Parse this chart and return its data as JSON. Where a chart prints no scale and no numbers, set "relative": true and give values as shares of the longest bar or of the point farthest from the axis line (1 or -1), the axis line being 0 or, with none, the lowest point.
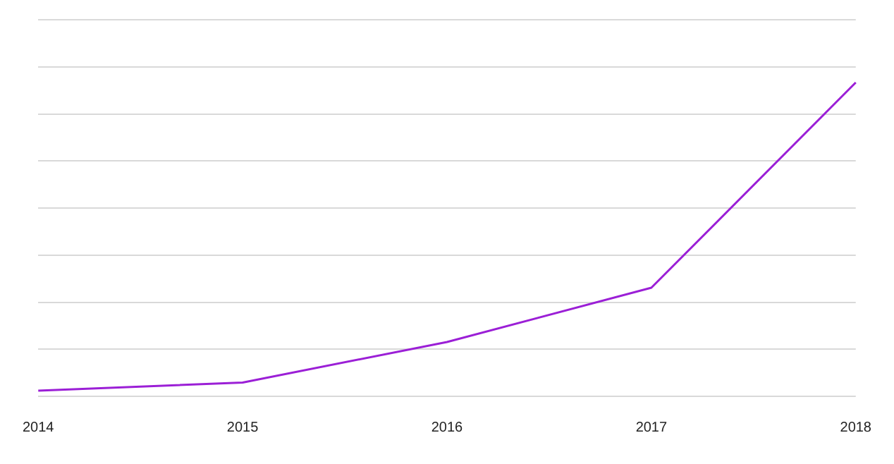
{
  "chart_data": {
    "type": "line",
    "categories": [
      "2014",
      "2015",
      "2016",
      "2017",
      "2018"
    ],
    "series": [
      {
        "color": "#9b1fd6",
        "values": [
          0.018,
          0.044,
          0.173,
          0.346,
          1
        ]
      }
    ],
    "relative": true,
    "grid": "y",
    "legend": false,
    "marker": "none",
    "line_style": "solid"
  }
}
